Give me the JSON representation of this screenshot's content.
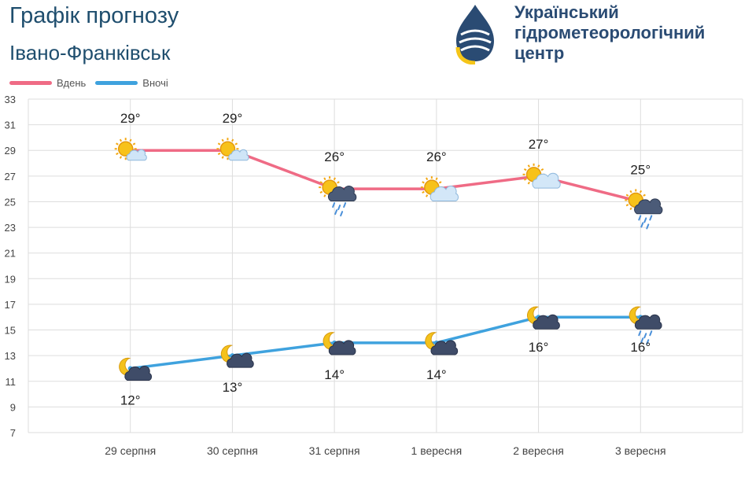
{
  "header": {
    "title": "Графік прогнозу",
    "city": "Івано-Франківськ",
    "org_line1": "Український",
    "org_line2": "гідрометеорологічний",
    "org_line3": "центр"
  },
  "colors": {
    "day": "#ef6b85",
    "night": "#3fa2de",
    "grid": "#dddddd",
    "text": "#222222",
    "brand": "#2a4b73",
    "brand_accent": "#f5c518"
  },
  "chart_data": {
    "type": "line",
    "categories": [
      "29 серпня",
      "30 серпня",
      "31 серпня",
      "1 вересня",
      "2 вересня",
      "3 вересня"
    ],
    "series": [
      {
        "name": "Вдень",
        "values": [
          29,
          29,
          26,
          26,
          27,
          25
        ],
        "labels": [
          "29°",
          "29°",
          "26°",
          "26°",
          "27°",
          "25°"
        ],
        "icons": [
          "sun-small-cloud",
          "sun-small-cloud",
          "sun-cloud-rain",
          "sun-cloud",
          "sun-cloud",
          "sun-cloud-rain"
        ]
      },
      {
        "name": "Вночі",
        "values": [
          12,
          13,
          14,
          14,
          16,
          16
        ],
        "labels": [
          "12°",
          "13°",
          "14°",
          "14°",
          "16°",
          "16°"
        ],
        "icons": [
          "moon-cloud",
          "moon-cloud",
          "moon-cloud",
          "moon-cloud",
          "moon-cloud",
          "moon-cloud-rain"
        ]
      }
    ],
    "y_ticks": [
      "7",
      "9",
      "11",
      "13",
      "15",
      "17",
      "19",
      "21",
      "23",
      "25",
      "27",
      "29",
      "31",
      "33"
    ],
    "ylim": [
      7,
      33
    ],
    "grid": true,
    "legend_position": "top-left"
  }
}
